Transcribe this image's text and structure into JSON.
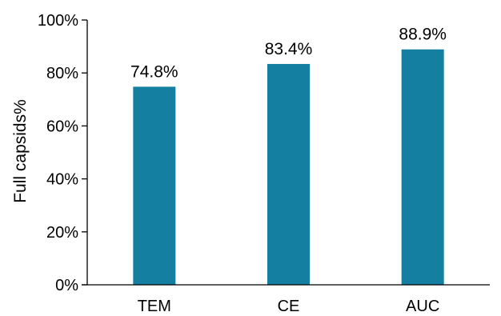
{
  "chart_data": {
    "type": "bar",
    "categories": [
      "TEM",
      "CE",
      "AUC"
    ],
    "values": [
      74.8,
      83.4,
      88.9
    ],
    "data_labels": [
      "74.8%",
      "83.4%",
      "88.9%"
    ],
    "ylabel": "Full capsids%",
    "xlabel": "",
    "ylim": [
      0,
      100
    ],
    "yticks": [
      0,
      20,
      40,
      60,
      80,
      100
    ],
    "ytick_labels": [
      "0%",
      "20%",
      "40%",
      "60%",
      "80%",
      "100%"
    ],
    "grid": false,
    "legend": "none",
    "bar_color": "#147FA0"
  }
}
